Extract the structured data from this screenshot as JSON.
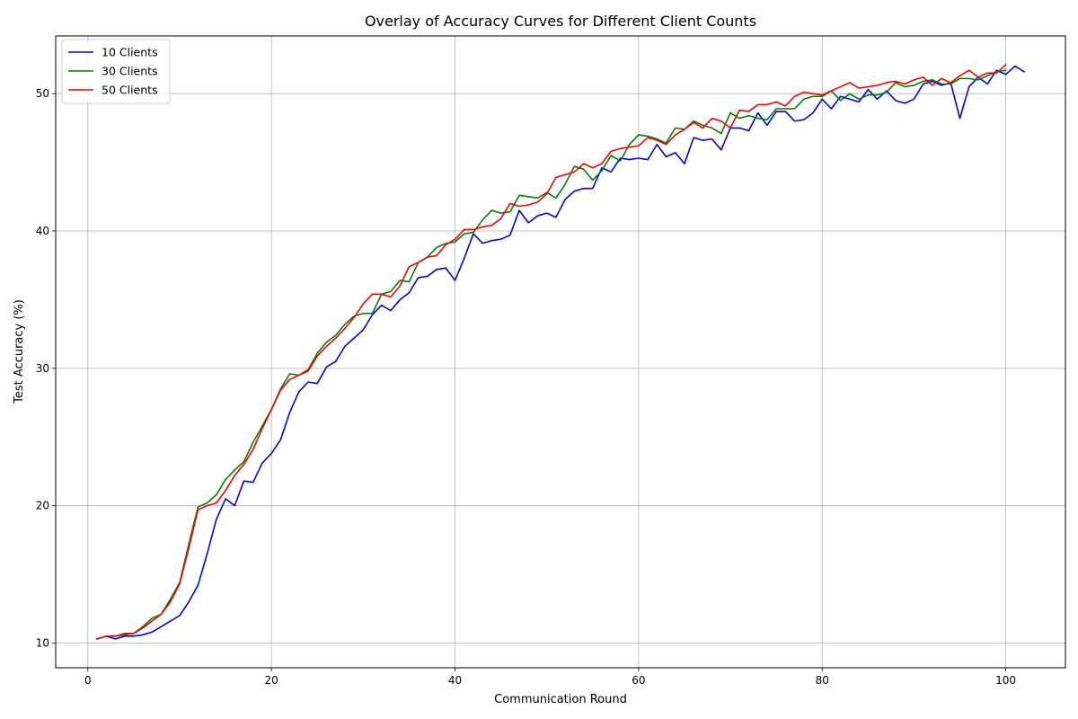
{
  "chart_data": {
    "type": "line",
    "title": "Overlay of Accuracy Curves for Different Client Counts",
    "xlabel": "Communication Round",
    "ylabel": "Test Accuracy (%)",
    "xlim": [
      -3.5,
      106.5
    ],
    "ylim": [
      8.2,
      54.2
    ],
    "xticks": [
      0,
      20,
      40,
      60,
      80,
      100
    ],
    "yticks": [
      10,
      20,
      30,
      40,
      50
    ],
    "grid": true,
    "legend_position": "upper-left",
    "series": [
      {
        "name": "10 Clients",
        "color": "#0000ff",
        "x": [
          1,
          2,
          3,
          4,
          5,
          6,
          7,
          8,
          9,
          10,
          11,
          12,
          13,
          14,
          15,
          16,
          17,
          18,
          19,
          20,
          21,
          22,
          23,
          24,
          25,
          26,
          27,
          28,
          29,
          30,
          31,
          32,
          33,
          34,
          35,
          36,
          37,
          38,
          39,
          40,
          41,
          42,
          43,
          44,
          45,
          46,
          47,
          48,
          49,
          50,
          51,
          52,
          53,
          54,
          55,
          56,
          57,
          58,
          59,
          60,
          61,
          62,
          63,
          64,
          65,
          66,
          67,
          68,
          69,
          70,
          71,
          72,
          73,
          74,
          75,
          76,
          77,
          78,
          79,
          80,
          81,
          82,
          83,
          84,
          85,
          86,
          87,
          88,
          89,
          90,
          91,
          92,
          93,
          94,
          95,
          96,
          97,
          98,
          99,
          100,
          101,
          102
        ],
        "y": [
          10.3,
          10.5,
          10.3,
          10.5,
          10.5,
          10.6,
          10.8,
          11.2,
          11.6,
          12.0,
          13.0,
          14.2,
          16.5,
          19.0,
          20.5,
          20.0,
          21.8,
          21.7,
          23.1,
          23.8,
          24.8,
          26.8,
          28.3,
          29.0,
          28.9,
          30.1,
          30.5,
          31.6,
          32.2,
          32.8,
          33.9,
          34.6,
          34.2,
          35.0,
          35.5,
          36.6,
          36.7,
          37.2,
          37.3,
          36.4,
          38.0,
          39.8,
          39.1,
          39.3,
          39.4,
          39.7,
          41.5,
          40.6,
          41.1,
          41.3,
          41.0,
          42.3,
          42.9,
          43.1,
          43.1,
          44.6,
          44.3,
          45.3,
          45.2,
          45.3,
          45.2,
          46.3,
          45.4,
          45.7,
          44.9,
          46.8,
          46.6,
          46.7,
          45.9,
          47.5,
          47.5,
          47.3,
          48.6,
          47.7,
          48.7,
          48.7,
          48.0,
          48.1,
          48.6,
          49.6,
          48.9,
          49.8,
          49.6,
          49.4,
          50.3,
          49.6,
          50.2,
          49.5,
          49.3,
          49.6,
          50.7,
          50.9,
          50.6,
          50.8,
          48.2,
          50.5,
          51.2,
          50.7,
          51.7,
          51.4,
          52.0,
          51.6
        ]
      },
      {
        "name": "30 Clients",
        "color": "#008000",
        "x": [
          1,
          2,
          3,
          4,
          5,
          6,
          7,
          8,
          9,
          10,
          11,
          12,
          13,
          14,
          15,
          16,
          17,
          18,
          19,
          20,
          21,
          22,
          23,
          24,
          25,
          26,
          27,
          28,
          29,
          30,
          31,
          32,
          33,
          34,
          35,
          36,
          37,
          38,
          39,
          40,
          41,
          42,
          43,
          44,
          45,
          46,
          47,
          48,
          49,
          50,
          51,
          52,
          53,
          54,
          55,
          56,
          57,
          58,
          59,
          60,
          61,
          62,
          63,
          64,
          65,
          66,
          67,
          68,
          69,
          70,
          71,
          72,
          73,
          74,
          75,
          76,
          77,
          78,
          79,
          80,
          81,
          82,
          83,
          84,
          85,
          86,
          87,
          88,
          89,
          90,
          91,
          92,
          93,
          94,
          95,
          96,
          97,
          98,
          99,
          100
        ],
        "y": [
          10.3,
          10.5,
          10.5,
          10.6,
          10.7,
          11.2,
          11.8,
          12.1,
          13.2,
          14.4,
          17.2,
          19.9,
          20.2,
          20.8,
          21.9,
          22.6,
          23.2,
          24.6,
          25.8,
          27.0,
          28.5,
          29.6,
          29.5,
          29.9,
          31.1,
          31.9,
          32.4,
          33.2,
          33.8,
          34.0,
          34.0,
          35.4,
          35.6,
          36.4,
          36.3,
          37.7,
          38.1,
          38.8,
          39.1,
          39.2,
          39.8,
          39.9,
          40.8,
          41.5,
          41.3,
          41.4,
          42.6,
          42.5,
          42.4,
          42.8,
          42.4,
          43.4,
          44.7,
          44.5,
          43.7,
          44.4,
          45.5,
          45.1,
          46.3,
          47.0,
          46.9,
          46.7,
          46.4,
          47.5,
          47.4,
          48.0,
          47.7,
          47.5,
          47.1,
          48.6,
          48.2,
          48.4,
          48.2,
          48.1,
          48.9,
          48.9,
          48.9,
          49.6,
          49.8,
          49.8,
          50.2,
          49.5,
          50.0,
          49.6,
          49.9,
          49.9,
          50.1,
          50.8,
          50.5,
          50.6,
          50.9,
          51.0,
          50.7,
          50.7,
          51.1,
          51.1,
          51.0,
          51.3,
          51.6,
          51.7
        ]
      },
      {
        "name": "50 Clients",
        "color": "#ff0000",
        "x": [
          1,
          2,
          3,
          4,
          5,
          6,
          7,
          8,
          9,
          10,
          11,
          12,
          13,
          14,
          15,
          16,
          17,
          18,
          19,
          20,
          21,
          22,
          23,
          24,
          25,
          26,
          27,
          28,
          29,
          30,
          31,
          32,
          33,
          34,
          35,
          36,
          37,
          38,
          39,
          40,
          41,
          42,
          43,
          44,
          45,
          46,
          47,
          48,
          49,
          50,
          51,
          52,
          53,
          54,
          55,
          56,
          57,
          58,
          59,
          60,
          61,
          62,
          63,
          64,
          65,
          66,
          67,
          68,
          69,
          70,
          71,
          72,
          73,
          74,
          75,
          76,
          77,
          78,
          79,
          80,
          81,
          82,
          83,
          84,
          85,
          86,
          87,
          88,
          89,
          90,
          91,
          92,
          93,
          94,
          95,
          96,
          97,
          98,
          99,
          100
        ],
        "y": [
          10.3,
          10.5,
          10.5,
          10.7,
          10.7,
          11.1,
          11.6,
          12.1,
          13.0,
          14.3,
          16.9,
          19.7,
          20.0,
          20.2,
          21.1,
          22.2,
          23.0,
          24.1,
          25.6,
          27.0,
          28.4,
          29.2,
          29.5,
          29.8,
          30.9,
          31.6,
          32.2,
          32.9,
          33.7,
          34.7,
          35.4,
          35.4,
          35.2,
          36.0,
          37.4,
          37.7,
          38.1,
          38.2,
          39.0,
          39.4,
          40.1,
          40.1,
          40.3,
          40.4,
          40.9,
          42.0,
          41.8,
          41.9,
          42.1,
          42.7,
          43.9,
          44.1,
          44.3,
          44.9,
          44.6,
          44.9,
          45.8,
          46.0,
          46.1,
          46.2,
          46.8,
          46.6,
          46.3,
          47.0,
          47.4,
          47.9,
          47.5,
          48.2,
          48.0,
          47.5,
          48.8,
          48.7,
          49.2,
          49.2,
          49.4,
          49.1,
          49.8,
          50.1,
          50.0,
          49.9,
          50.2,
          50.5,
          50.8,
          50.4,
          50.5,
          50.6,
          50.8,
          50.9,
          50.7,
          51.0,
          51.2,
          50.6,
          51.1,
          50.8,
          51.3,
          51.7,
          51.2,
          51.5,
          51.5,
          52.1
        ]
      }
    ]
  }
}
